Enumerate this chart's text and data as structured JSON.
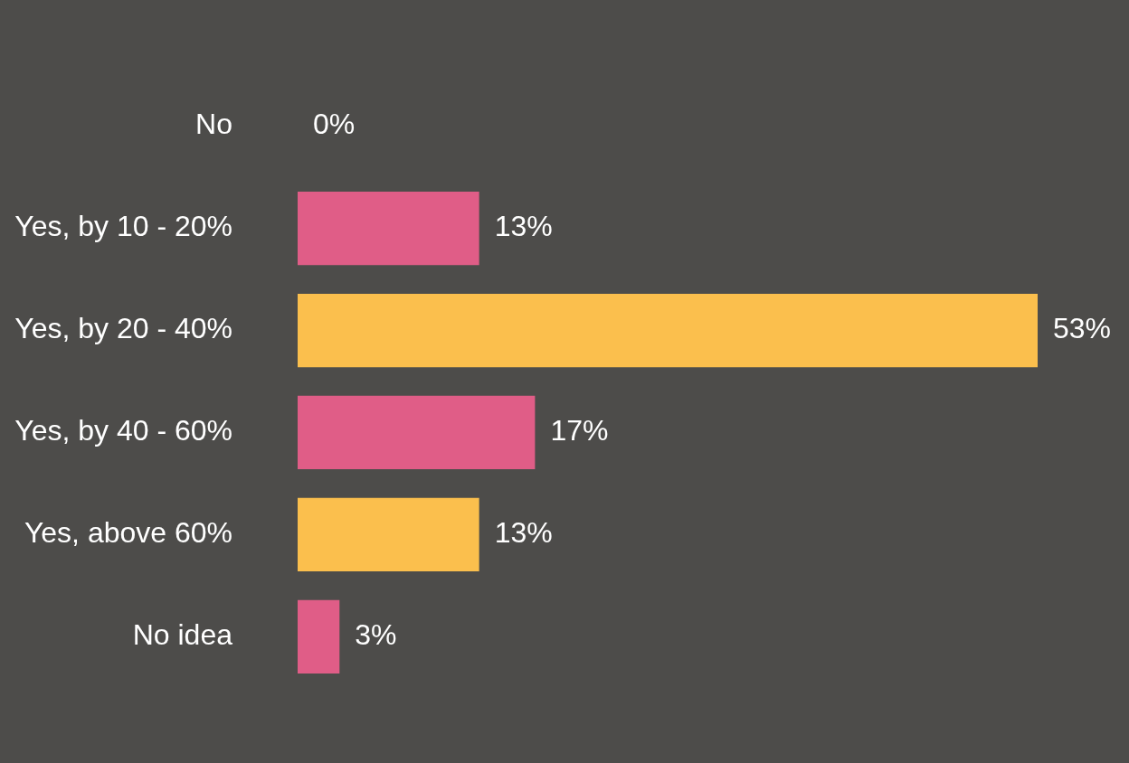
{
  "chart_data": {
    "type": "bar",
    "orientation": "horizontal",
    "categories": [
      "No",
      "Yes, by 10 - 20%",
      "Yes, by 20 - 40%",
      "Yes, by 40 - 60%",
      "Yes, above 60%",
      "No idea"
    ],
    "values": [
      0,
      13,
      53,
      17,
      13,
      3
    ],
    "colors": [
      "#e05d87",
      "#e05d87",
      "#fbbf4d",
      "#e05d87",
      "#fbbf4d",
      "#e05d87"
    ],
    "value_labels": [
      "0%",
      "13%",
      "53%",
      "17%",
      "13%",
      "3%"
    ],
    "grid": false,
    "legend": false
  }
}
